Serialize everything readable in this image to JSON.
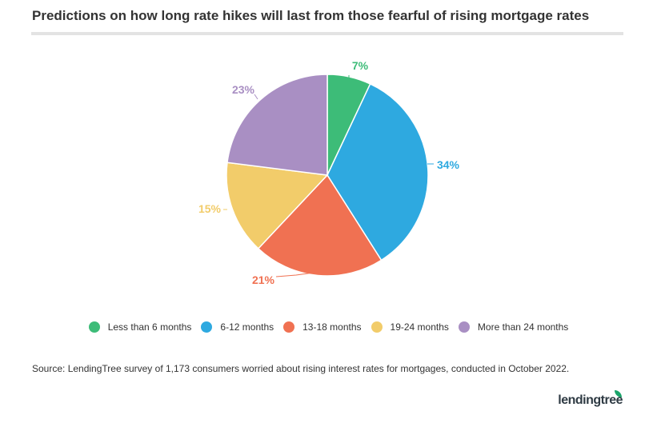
{
  "title": "Predictions on how long rate hikes will last from those fearful of rising mortgage rates",
  "source": "Source: LendingTree survey of 1,173 consumers worried about rising interest rates for mortgages, conducted in October 2022.",
  "brand": "lendingtree",
  "chart_data": {
    "type": "pie",
    "title": "Predictions on how long rate hikes will last from those fearful of rising mortgage rates",
    "legend_position": "bottom",
    "slices": [
      {
        "label": "Less than 6 months",
        "value": 7,
        "display": "7%",
        "color": "#3dbc78"
      },
      {
        "label": "6-12 months",
        "value": 34,
        "display": "34%",
        "color": "#2ea9e0"
      },
      {
        "label": "13-18 months",
        "value": 21,
        "display": "21%",
        "color": "#f07152"
      },
      {
        "label": "19-24 months",
        "value": 15,
        "display": "15%",
        "color": "#f2cc6a"
      },
      {
        "label": "More than 24 months",
        "value": 23,
        "display": "23%",
        "color": "#a98fc3"
      }
    ]
  }
}
